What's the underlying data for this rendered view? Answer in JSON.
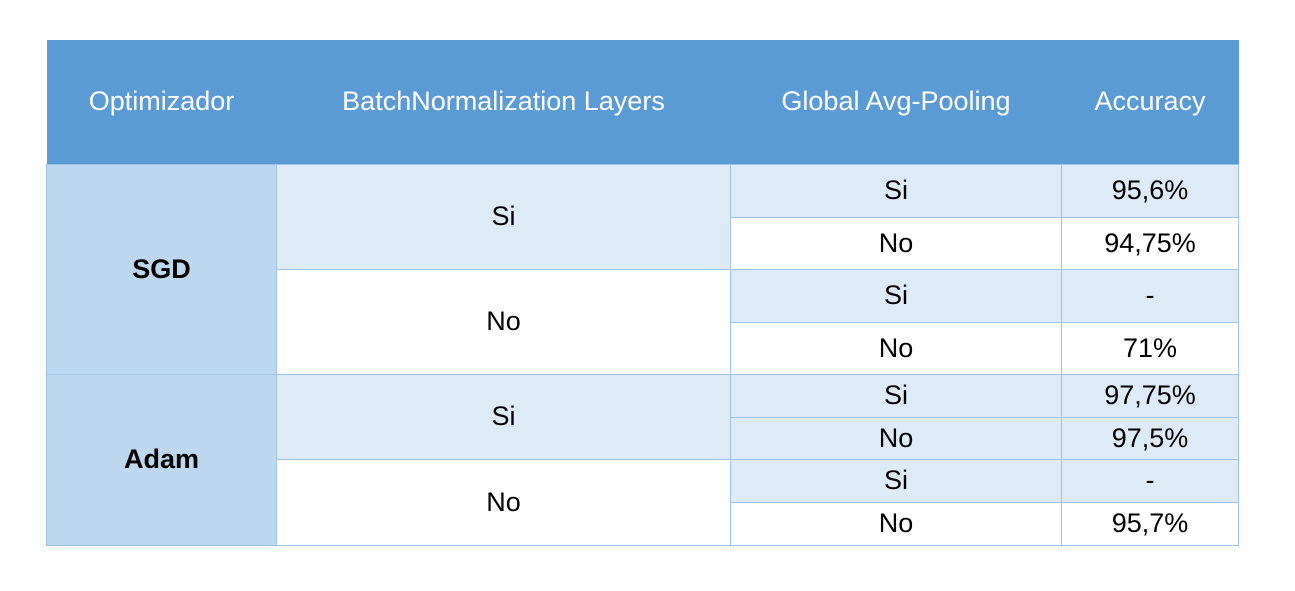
{
  "table": {
    "headers": {
      "optimizer": "Optimizador",
      "batchnorm": "BatchNormalization Layers",
      "pooling": "Global Avg-Pooling",
      "accuracy": "Accuracy"
    },
    "groups": [
      {
        "optimizer": "SGD",
        "batchnorm": [
          {
            "value": "Si",
            "rows": [
              {
                "pooling": "Si",
                "accuracy": "95,6%"
              },
              {
                "pooling": "No",
                "accuracy": "94,75%"
              }
            ]
          },
          {
            "value": "No",
            "rows": [
              {
                "pooling": "Si",
                "accuracy": "-"
              },
              {
                "pooling": "No",
                "accuracy": "71%"
              }
            ]
          }
        ]
      },
      {
        "optimizer": "Adam",
        "batchnorm": [
          {
            "value": "Si",
            "rows": [
              {
                "pooling": "Si",
                "accuracy": "97,75%"
              },
              {
                "pooling": "No",
                "accuracy": "97,5%"
              }
            ]
          },
          {
            "value": "No",
            "rows": [
              {
                "pooling": "Si",
                "accuracy": "-"
              },
              {
                "pooling": "No",
                "accuracy": "95,7%"
              }
            ]
          }
        ]
      }
    ]
  },
  "colors": {
    "header_bg": "#5b9bd5",
    "header_text": "#ffffff",
    "optimizer_bg": "#bdd7ee",
    "shaded_row_bg": "#deebf7",
    "border": "#9dc3e6"
  }
}
